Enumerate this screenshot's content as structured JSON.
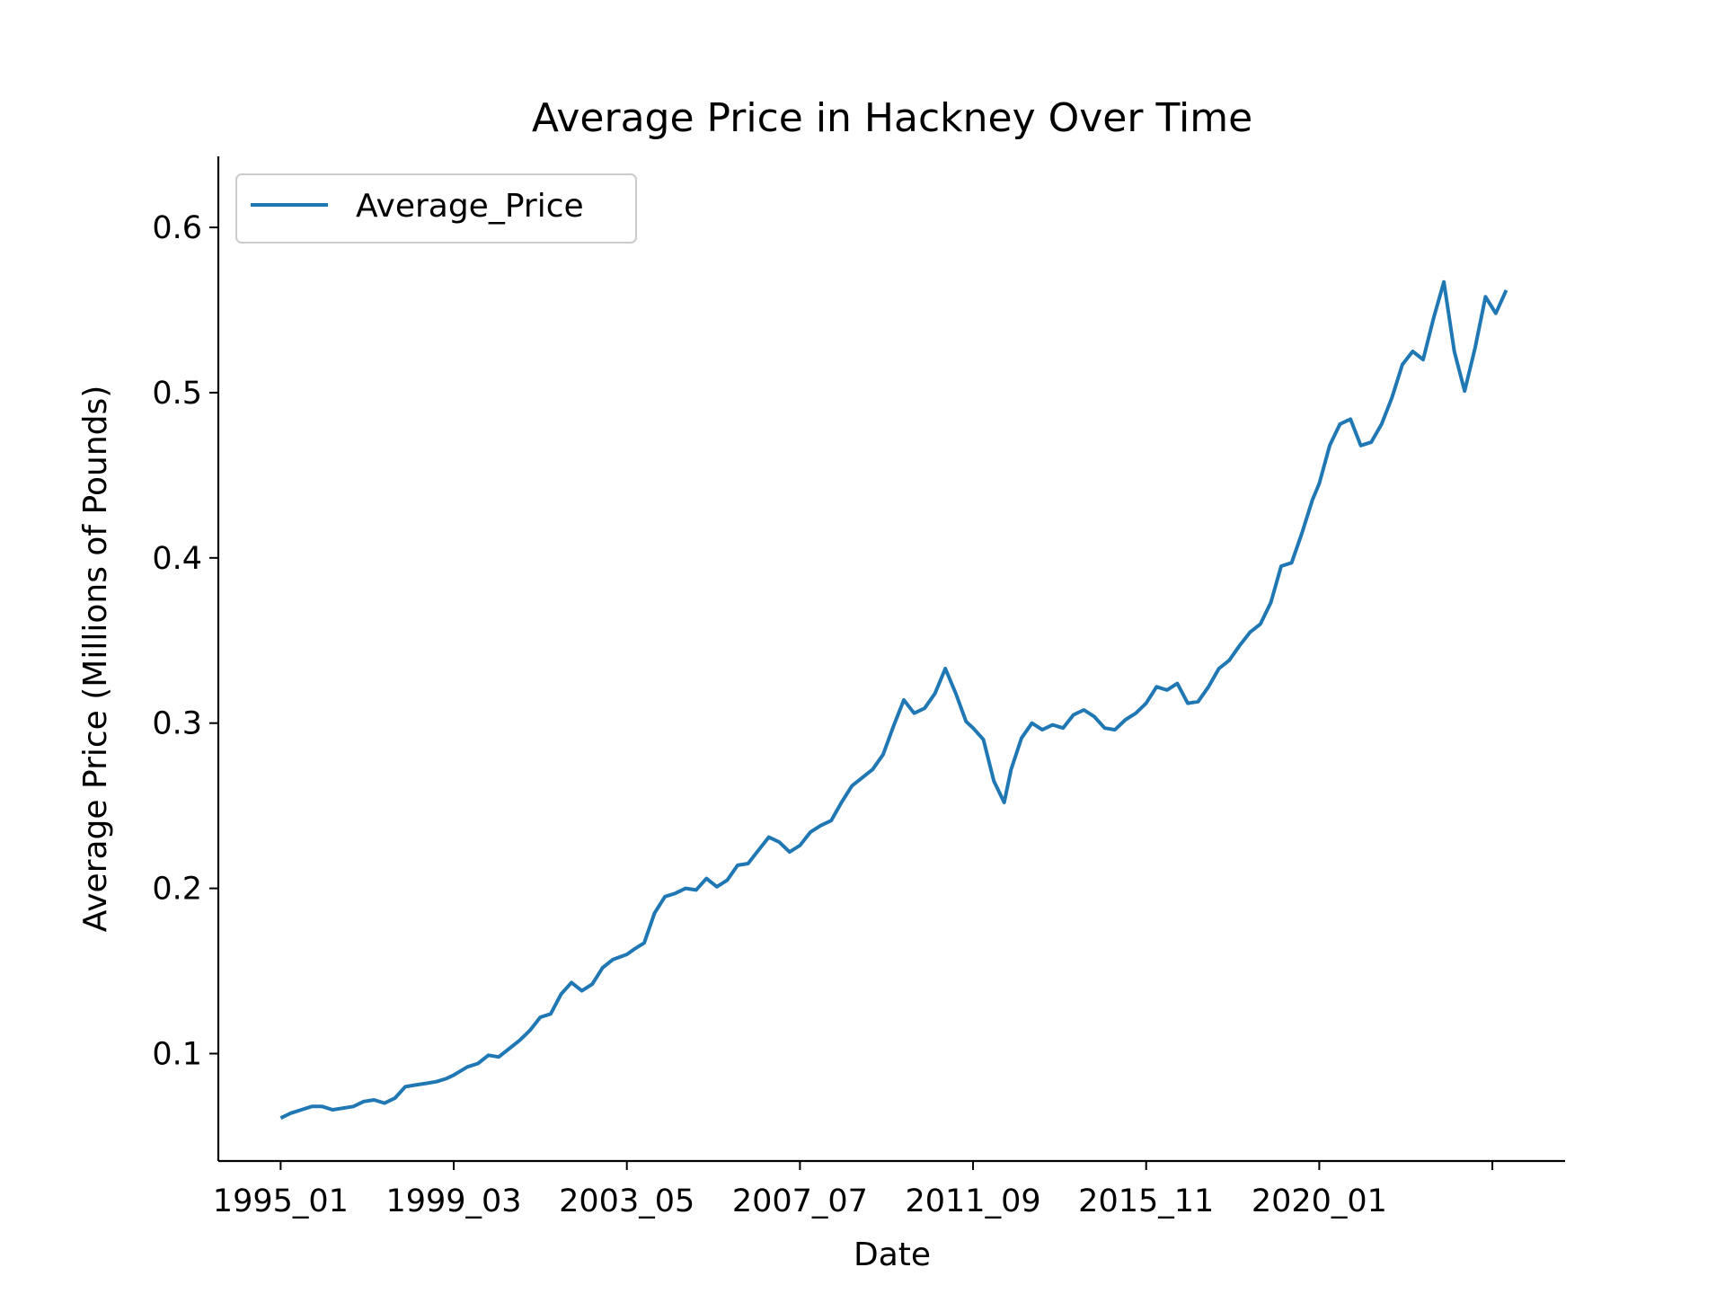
{
  "chart_data": {
    "type": "line",
    "title": "Average Price in Hackney Over Time",
    "xlabel": "Date",
    "ylabel": "Average Price (Millions of Pounds)",
    "x_tick_labels": [
      "1995_01",
      "1999_03",
      "2003_05",
      "2007_07",
      "2011_09",
      "2015_11",
      "2020_01",
      ""
    ],
    "y_ticks": [
      0.1,
      0.2,
      0.3,
      0.4,
      0.5,
      0.6
    ],
    "y_tick_labels": [
      "0.1",
      "0.2",
      "0.3",
      "0.4",
      "0.5",
      "0.6"
    ],
    "ylim": [
      0.035,
      0.643
    ],
    "xlim": [
      "1993_07",
      "2025_12"
    ],
    "grid": false,
    "legend_position": "top-left",
    "colors": {
      "series": "#1f77b4"
    },
    "series": [
      {
        "name": "Average_Price",
        "points": [
          [
            "1995_01",
            0.061
          ],
          [
            "1995_04",
            0.064
          ],
          [
            "1995_07",
            0.066
          ],
          [
            "1995_10",
            0.068
          ],
          [
            "1996_01",
            0.068
          ],
          [
            "1996_04",
            0.066
          ],
          [
            "1996_07",
            0.067
          ],
          [
            "1996_10",
            0.068
          ],
          [
            "1997_01",
            0.071
          ],
          [
            "1997_04",
            0.072
          ],
          [
            "1997_07",
            0.07
          ],
          [
            "1997_10",
            0.073
          ],
          [
            "1998_01",
            0.08
          ],
          [
            "1998_04",
            0.081
          ],
          [
            "1998_07",
            0.082
          ],
          [
            "1998_10",
            0.083
          ],
          [
            "1999_01",
            0.085
          ],
          [
            "1999_03",
            0.087
          ],
          [
            "1999_07",
            0.092
          ],
          [
            "1999_10",
            0.094
          ],
          [
            "2000_01",
            0.099
          ],
          [
            "2000_04",
            0.098
          ],
          [
            "2000_07",
            0.103
          ],
          [
            "2000_10",
            0.108
          ],
          [
            "2001_01",
            0.114
          ],
          [
            "2001_04",
            0.122
          ],
          [
            "2001_07",
            0.124
          ],
          [
            "2001_10",
            0.136
          ],
          [
            "2002_01",
            0.143
          ],
          [
            "2002_04",
            0.138
          ],
          [
            "2002_07",
            0.142
          ],
          [
            "2002_10",
            0.152
          ],
          [
            "2003_01",
            0.157
          ],
          [
            "2003_05",
            0.16
          ],
          [
            "2003_07",
            0.163
          ],
          [
            "2003_10",
            0.167
          ],
          [
            "2004_01",
            0.185
          ],
          [
            "2004_04",
            0.195
          ],
          [
            "2004_07",
            0.197
          ],
          [
            "2004_10",
            0.2
          ],
          [
            "2005_01",
            0.199
          ],
          [
            "2005_04",
            0.206
          ],
          [
            "2005_07",
            0.201
          ],
          [
            "2005_10",
            0.205
          ],
          [
            "2006_01",
            0.214
          ],
          [
            "2006_04",
            0.215
          ],
          [
            "2006_07",
            0.223
          ],
          [
            "2006_10",
            0.231
          ],
          [
            "2007_01",
            0.228
          ],
          [
            "2007_04",
            0.222
          ],
          [
            "2007_07",
            0.226
          ],
          [
            "2007_10",
            0.234
          ],
          [
            "2008_01",
            0.238
          ],
          [
            "2008_04",
            0.241
          ],
          [
            "2008_07",
            0.252
          ],
          [
            "2008_10",
            0.262
          ],
          [
            "2009_01",
            0.267
          ],
          [
            "2009_04",
            0.272
          ],
          [
            "2009_07",
            0.281
          ],
          [
            "2009_10",
            0.298
          ],
          [
            "2010_01",
            0.314
          ],
          [
            "2010_04",
            0.306
          ],
          [
            "2010_07",
            0.309
          ],
          [
            "2010_10",
            0.318
          ],
          [
            "2011_01",
            0.333
          ],
          [
            "2011_04",
            0.318
          ],
          [
            "2011_07",
            0.301
          ],
          [
            "2011_09",
            0.297
          ],
          [
            "2011_12",
            0.29
          ],
          [
            "2012_03",
            0.265
          ],
          [
            "2012_06",
            0.252
          ],
          [
            "2012_08",
            0.272
          ],
          [
            "2012_11",
            0.291
          ],
          [
            "2013_02",
            0.3
          ],
          [
            "2013_05",
            0.296
          ],
          [
            "2013_08",
            0.299
          ],
          [
            "2013_11",
            0.297
          ],
          [
            "2014_02",
            0.305
          ],
          [
            "2014_05",
            0.308
          ],
          [
            "2014_08",
            0.304
          ],
          [
            "2014_11",
            0.297
          ],
          [
            "2015_02",
            0.296
          ],
          [
            "2015_05",
            0.302
          ],
          [
            "2015_08",
            0.306
          ],
          [
            "2015_11",
            0.312
          ],
          [
            "2016_02",
            0.322
          ],
          [
            "2016_05",
            0.32
          ],
          [
            "2016_08",
            0.324
          ],
          [
            "2016_11",
            0.312
          ],
          [
            "2017_02",
            0.313
          ],
          [
            "2017_05",
            0.322
          ],
          [
            "2017_08",
            0.333
          ],
          [
            "2017_11",
            0.338
          ],
          [
            "2018_02",
            0.347
          ],
          [
            "2018_05",
            0.355
          ],
          [
            "2018_08",
            0.36
          ],
          [
            "2018_11",
            0.373
          ],
          [
            "2019_02",
            0.395
          ],
          [
            "2019_05",
            0.397
          ],
          [
            "2019_08",
            0.415
          ],
          [
            "2019_11",
            0.435
          ],
          [
            "2020_01",
            0.445
          ],
          [
            "2020_04",
            0.468
          ],
          [
            "2020_07",
            0.481
          ],
          [
            "2020_10",
            0.484
          ],
          [
            "2021_01",
            0.468
          ],
          [
            "2021_04",
            0.47
          ],
          [
            "2021_07",
            0.481
          ],
          [
            "2021_10",
            0.497
          ],
          [
            "2022_01",
            0.517
          ],
          [
            "2022_04",
            0.525
          ],
          [
            "2022_07",
            0.52
          ],
          [
            "2022_10",
            0.545
          ],
          [
            "2023_01",
            0.567
          ],
          [
            "2023_04",
            0.525
          ],
          [
            "2023_07",
            0.501
          ],
          [
            "2023_10",
            0.527
          ],
          [
            "2024_01",
            0.558
          ],
          [
            "2024_04",
            0.548
          ],
          [
            "2024_07",
            0.562
          ]
        ]
      }
    ]
  }
}
